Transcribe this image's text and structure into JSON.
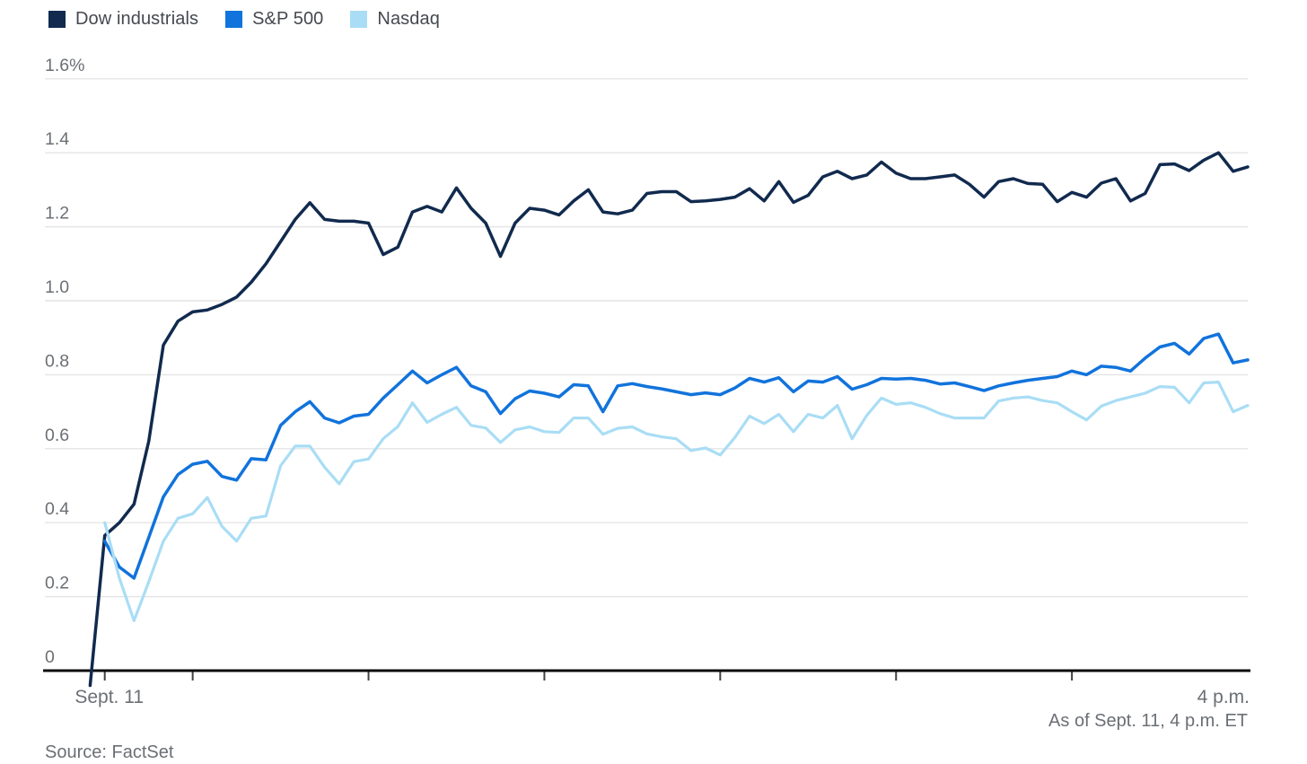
{
  "legend": {
    "items": [
      {
        "label": "Dow industrials",
        "color": "#112a4e"
      },
      {
        "label": "S&P 500",
        "color": "#1173dc"
      },
      {
        "label": "Nasdaq",
        "color": "#a9ddf5"
      }
    ]
  },
  "chart_data": {
    "type": "line",
    "title": "",
    "xlabel": "",
    "ylabel": "",
    "x_axis": {
      "start_label": "Sept. 11",
      "end_label": "4 p.m.",
      "session_minutes": 390,
      "tick_minutes": [
        0,
        30,
        90,
        150,
        210,
        270,
        330
      ],
      "tick_times": [
        "9:30",
        "10:00",
        "11:00",
        "12:00",
        "1:00",
        "2:00",
        "3:00"
      ]
    },
    "y_axis": {
      "unit": "%",
      "range": [
        0,
        1.6
      ],
      "ticks": [
        {
          "value": 0,
          "label": "0"
        },
        {
          "value": 0.2,
          "label": "0.2"
        },
        {
          "value": 0.4,
          "label": "0.4"
        },
        {
          "value": 0.6,
          "label": "0.6"
        },
        {
          "value": 0.8,
          "label": "0.8"
        },
        {
          "value": 1.0,
          "label": "1.0"
        },
        {
          "value": 1.2,
          "label": "1.2"
        },
        {
          "value": 1.4,
          "label": "1.4"
        },
        {
          "value": 1.6,
          "label": "1.6%"
        }
      ],
      "grid": true
    },
    "series": [
      {
        "name": "Dow industrials",
        "color": "#112a4e",
        "stroke_width": 3.5,
        "start_minute": -5,
        "step_minutes": 5,
        "values": [
          -0.04,
          0.365,
          0.4,
          0.45,
          0.62,
          0.88,
          0.945,
          0.97,
          0.975,
          0.99,
          1.01,
          1.05,
          1.1,
          1.16,
          1.22,
          1.265,
          1.22,
          1.215,
          1.215,
          1.21,
          1.125,
          1.145,
          1.24,
          1.255,
          1.24,
          1.305,
          1.25,
          1.21,
          1.12,
          1.21,
          1.25,
          1.245,
          1.232,
          1.27,
          1.3,
          1.24,
          1.235,
          1.245,
          1.29,
          1.295,
          1.295,
          1.268,
          1.27,
          1.274,
          1.28,
          1.303,
          1.27,
          1.322,
          1.266,
          1.285,
          1.335,
          1.35,
          1.33,
          1.34,
          1.375,
          1.345,
          1.33,
          1.33,
          1.335,
          1.34,
          1.315,
          1.28,
          1.322,
          1.33,
          1.317,
          1.315,
          1.268,
          1.293,
          1.28,
          1.318,
          1.33,
          1.27,
          1.29,
          1.368,
          1.37,
          1.352,
          1.38,
          1.4,
          1.35,
          1.362
        ]
      },
      {
        "name": "S&P 500",
        "color": "#1173dc",
        "stroke_width": 3.5,
        "start_minute": 0,
        "step_minutes": 5,
        "values": [
          0.35,
          0.28,
          0.25,
          0.36,
          0.47,
          0.53,
          0.558,
          0.566,
          0.525,
          0.515,
          0.573,
          0.57,
          0.663,
          0.7,
          0.727,
          0.683,
          0.67,
          0.688,
          0.693,
          0.737,
          0.773,
          0.81,
          0.778,
          0.8,
          0.82,
          0.77,
          0.754,
          0.695,
          0.735,
          0.756,
          0.75,
          0.74,
          0.773,
          0.77,
          0.7,
          0.77,
          0.776,
          0.768,
          0.762,
          0.754,
          0.746,
          0.751,
          0.746,
          0.764,
          0.79,
          0.78,
          0.792,
          0.754,
          0.783,
          0.78,
          0.795,
          0.761,
          0.773,
          0.79,
          0.788,
          0.79,
          0.785,
          0.775,
          0.778,
          0.768,
          0.757,
          0.77,
          0.778,
          0.785,
          0.79,
          0.795,
          0.81,
          0.8,
          0.823,
          0.82,
          0.81,
          0.845,
          0.875,
          0.885,
          0.856,
          0.898,
          0.91,
          0.832,
          0.84
        ]
      },
      {
        "name": "Nasdaq",
        "color": "#a9ddf5",
        "stroke_width": 3.2,
        "start_minute": 0,
        "step_minutes": 5,
        "values": [
          0.4,
          0.25,
          0.135,
          0.24,
          0.35,
          0.412,
          0.424,
          0.468,
          0.39,
          0.35,
          0.412,
          0.418,
          0.554,
          0.607,
          0.607,
          0.55,
          0.505,
          0.565,
          0.572,
          0.627,
          0.66,
          0.724,
          0.671,
          0.693,
          0.712,
          0.663,
          0.656,
          0.617,
          0.651,
          0.659,
          0.646,
          0.644,
          0.683,
          0.683,
          0.639,
          0.655,
          0.659,
          0.64,
          0.632,
          0.627,
          0.595,
          0.602,
          0.583,
          0.63,
          0.688,
          0.668,
          0.693,
          0.646,
          0.693,
          0.683,
          0.717,
          0.627,
          0.69,
          0.737,
          0.72,
          0.724,
          0.712,
          0.695,
          0.683,
          0.683,
          0.683,
          0.729,
          0.737,
          0.74,
          0.73,
          0.724,
          0.7,
          0.678,
          0.715,
          0.73,
          0.74,
          0.75,
          0.768,
          0.766,
          0.724,
          0.778,
          0.78,
          0.7,
          0.717
        ]
      }
    ],
    "legend_position": "top-left"
  },
  "footer": {
    "as_of": "As of Sept. 11, 4 p.m. ET",
    "source": "Source: FactSet"
  }
}
